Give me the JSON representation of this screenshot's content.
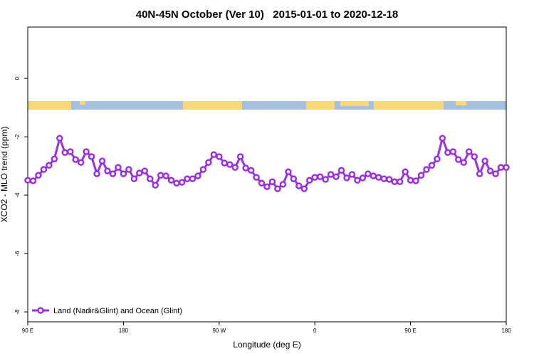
{
  "chart_data": {
    "type": "line",
    "title": "40N-45N October (Ver 10)   2015-01-01 to 2020-12-18",
    "x_label": "Longitude (deg E)",
    "y_label": "XCO2 - MLO trend (ppm)",
    "x": [
      90,
      95,
      100,
      105,
      110,
      115,
      120,
      125,
      130,
      135,
      140,
      145,
      150,
      155,
      160,
      165,
      170,
      175,
      180,
      185,
      190,
      195,
      200,
      205,
      210,
      215,
      220,
      225,
      230,
      235,
      240,
      245,
      250,
      255,
      260,
      265,
      270,
      275,
      280,
      285,
      290,
      295,
      300,
      305,
      310,
      315,
      320,
      325,
      330,
      335,
      340,
      345,
      350,
      355,
      360,
      365,
      370,
      375,
      380,
      385,
      390,
      395,
      400,
      405,
      410,
      415,
      420,
      425,
      430,
      435,
      440,
      445,
      450,
      455,
      460,
      465,
      470,
      475,
      480,
      485,
      490,
      495,
      500,
      505,
      510,
      515,
      520,
      525,
      530,
      535,
      540
    ],
    "series": [
      {
        "name": "Land (Nadir&Glint) and Ocean (Glint)",
        "color": "#9b30e0",
        "values": [
          -3.49,
          -3.51,
          -3.32,
          -3.12,
          -2.98,
          -2.76,
          -2.05,
          -2.54,
          -2.51,
          -2.78,
          -2.88,
          -2.51,
          -2.68,
          -3.27,
          -2.83,
          -3.17,
          -3.27,
          -3.05,
          -3.27,
          -3.12,
          -3.44,
          -3.24,
          -3.17,
          -3.44,
          -3.66,
          -3.32,
          -3.34,
          -3.49,
          -3.59,
          -3.56,
          -3.44,
          -3.44,
          -3.34,
          -3.12,
          -2.88,
          -2.61,
          -2.68,
          -2.9,
          -2.95,
          -3.05,
          -2.68,
          -3.07,
          -3.15,
          -3.39,
          -3.59,
          -3.71,
          -3.54,
          -3.78,
          -3.63,
          -3.2,
          -3.44,
          -3.68,
          -3.78,
          -3.49,
          -3.39,
          -3.37,
          -3.46,
          -3.29,
          -3.37,
          -3.15,
          -3.41,
          -3.29,
          -3.49,
          -3.41,
          -3.27,
          -3.34,
          -3.39,
          -3.44,
          -3.46,
          -3.54,
          -3.54,
          -3.2,
          -3.49,
          -3.51,
          -3.32,
          -3.12,
          -2.98,
          -2.76,
          -2.05,
          -2.54,
          -2.51,
          -2.78,
          -2.88,
          -2.51,
          -2.68,
          -3.27,
          -2.83,
          -3.17,
          -3.27,
          -3.05,
          -3.05
        ]
      }
    ],
    "xlim": [
      90,
      540
    ],
    "xticks": [
      {
        "value": 90,
        "label": "90 E"
      },
      180,
      {
        "value": 270,
        "label": "90 W"
      },
      {
        "value": 360,
        "label": "0"
      },
      {
        "value": 450,
        "label": "90 E"
      },
      {
        "value": 540,
        "label": "180"
      }
    ],
    "ylim": [
      -8.34,
      1.76
    ],
    "yticks": [
      0,
      -2,
      -4,
      -6,
      -8
    ],
    "legend": "bottom-left"
  }
}
